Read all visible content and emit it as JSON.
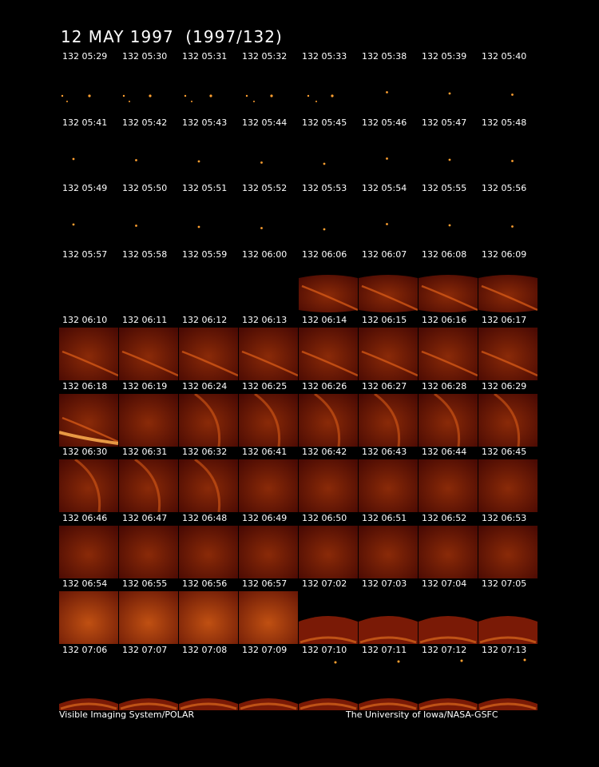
{
  "title": "12 MAY 1997  (1997/132)",
  "footer_left": "Visible Imaging System/POLAR",
  "footer_right": "The University of Iowa/NASA-GSFC",
  "colors": {
    "background": "#000000",
    "frame": "#5a0c04",
    "aurora": "#e06018",
    "dot": "#ffa030"
  },
  "frames": [
    {
      "label": "132 05:29",
      "kind": "dots"
    },
    {
      "label": "132 05:30",
      "kind": "dots"
    },
    {
      "label": "132 05:31",
      "kind": "dots"
    },
    {
      "label": "132 05:32",
      "kind": "dots"
    },
    {
      "label": "132 05:33",
      "kind": "dots"
    },
    {
      "label": "132 05:38",
      "kind": "dot"
    },
    {
      "label": "132 05:39",
      "kind": "dot"
    },
    {
      "label": "132 05:40",
      "kind": "dot"
    },
    {
      "label": "132 05:41",
      "kind": "dot"
    },
    {
      "label": "132 05:42",
      "kind": "dot"
    },
    {
      "label": "132 05:43",
      "kind": "dot"
    },
    {
      "label": "132 05:44",
      "kind": "dot"
    },
    {
      "label": "132 05:45",
      "kind": "dot"
    },
    {
      "label": "132 05:46",
      "kind": "dot"
    },
    {
      "label": "132 05:47",
      "kind": "dot"
    },
    {
      "label": "132 05:48",
      "kind": "dot"
    },
    {
      "label": "132 05:49",
      "kind": "dot"
    },
    {
      "label": "132 05:50",
      "kind": "dot"
    },
    {
      "label": "132 05:51",
      "kind": "dot"
    },
    {
      "label": "132 05:52",
      "kind": "dot"
    },
    {
      "label": "132 05:53",
      "kind": "dot"
    },
    {
      "label": "132 05:54",
      "kind": "dot"
    },
    {
      "label": "132 05:55",
      "kind": "dot"
    },
    {
      "label": "132 05:56",
      "kind": "dot"
    },
    {
      "label": "132 05:57",
      "kind": "empty"
    },
    {
      "label": "132 05:58",
      "kind": "empty"
    },
    {
      "label": "132 05:59",
      "kind": "empty"
    },
    {
      "label": "132 06:00",
      "kind": "empty"
    },
    {
      "label": "132 06:06",
      "kind": "arc-short"
    },
    {
      "label": "132 06:07",
      "kind": "arc-short"
    },
    {
      "label": "132 06:08",
      "kind": "arc-short"
    },
    {
      "label": "132 06:09",
      "kind": "arc-short"
    },
    {
      "label": "132 06:10",
      "kind": "arc"
    },
    {
      "label": "132 06:11",
      "kind": "arc"
    },
    {
      "label": "132 06:12",
      "kind": "arc"
    },
    {
      "label": "132 06:13",
      "kind": "arc"
    },
    {
      "label": "132 06:14",
      "kind": "arc"
    },
    {
      "label": "132 06:15",
      "kind": "arc"
    },
    {
      "label": "132 06:16",
      "kind": "arc"
    },
    {
      "label": "132 06:17",
      "kind": "arc"
    },
    {
      "label": "132 06:18",
      "kind": "arc-bright"
    },
    {
      "label": "132 06:19",
      "kind": "faint"
    },
    {
      "label": "132 06:24",
      "kind": "arc-tall"
    },
    {
      "label": "132 06:25",
      "kind": "arc-tall"
    },
    {
      "label": "132 06:26",
      "kind": "arc-tall"
    },
    {
      "label": "132 06:27",
      "kind": "arc-tall"
    },
    {
      "label": "132 06:28",
      "kind": "arc-tall"
    },
    {
      "label": "132 06:29",
      "kind": "arc-tall"
    },
    {
      "label": "132 06:30",
      "kind": "arc-tall"
    },
    {
      "label": "132 06:31",
      "kind": "arc-tall"
    },
    {
      "label": "132 06:32",
      "kind": "arc-tall"
    },
    {
      "label": "132 06:41",
      "kind": "faint"
    },
    {
      "label": "132 06:42",
      "kind": "faint"
    },
    {
      "label": "132 06:43",
      "kind": "faint"
    },
    {
      "label": "132 06:44",
      "kind": "faint"
    },
    {
      "label": "132 06:45",
      "kind": "faint"
    },
    {
      "label": "132 06:46",
      "kind": "glow"
    },
    {
      "label": "132 06:47",
      "kind": "glow"
    },
    {
      "label": "132 06:48",
      "kind": "glow"
    },
    {
      "label": "132 06:49",
      "kind": "glow"
    },
    {
      "label": "132 06:50",
      "kind": "glow"
    },
    {
      "label": "132 06:51",
      "kind": "glow"
    },
    {
      "label": "132 06:52",
      "kind": "glow"
    },
    {
      "label": "132 06:53",
      "kind": "glow"
    },
    {
      "label": "132 06:54",
      "kind": "bright"
    },
    {
      "label": "132 06:55",
      "kind": "bright"
    },
    {
      "label": "132 06:56",
      "kind": "bright"
    },
    {
      "label": "132 06:57",
      "kind": "bright"
    },
    {
      "label": "132 07:02",
      "kind": "dome"
    },
    {
      "label": "132 07:03",
      "kind": "dome"
    },
    {
      "label": "132 07:04",
      "kind": "dome"
    },
    {
      "label": "132 07:05",
      "kind": "dome"
    },
    {
      "label": "132 07:06",
      "kind": "dome-low"
    },
    {
      "label": "132 07:07",
      "kind": "dome-low"
    },
    {
      "label": "132 07:08",
      "kind": "dome-low"
    },
    {
      "label": "132 07:09",
      "kind": "dome-low"
    },
    {
      "label": "132 07:10",
      "kind": "dome-low-dot"
    },
    {
      "label": "132 07:11",
      "kind": "dome-low-dot"
    },
    {
      "label": "132 07:12",
      "kind": "dome-low-dot"
    },
    {
      "label": "132 07:13",
      "kind": "dome-low-dot"
    }
  ]
}
